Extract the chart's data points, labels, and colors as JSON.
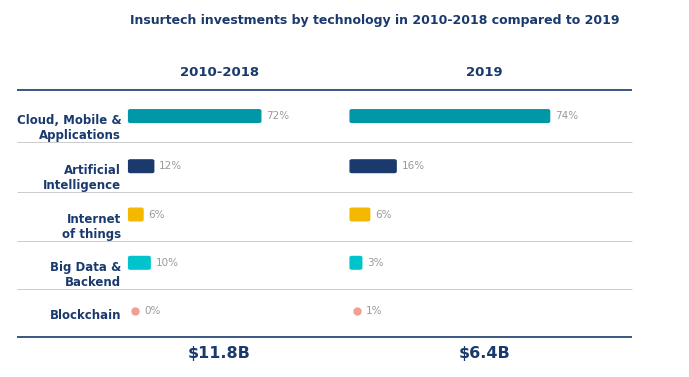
{
  "title": "Insurtech investments by technology in 2010-2018 compared to 2019",
  "col1_header": "2010-2018",
  "col2_header": "2019",
  "col1_total": "$11.8B",
  "col2_total": "$6.4B",
  "categories": [
    "Cloud, Mobile &\nApplications",
    "Artificial\nIntelligence",
    "Internet\nof things",
    "Big Data &\nBackend",
    "Blockchain"
  ],
  "col1_values": [
    72,
    12,
    6,
    10,
    0
  ],
  "col2_values": [
    74,
    16,
    6,
    3,
    1
  ],
  "col1_labels": [
    "72%",
    "12%",
    "6%",
    "10%",
    "0%"
  ],
  "col2_labels": [
    "74%",
    "16%",
    "6%",
    "3%",
    "1%"
  ],
  "bar_colors": [
    "#0097a7",
    "#1a3a6e",
    "#f5b800",
    "#00c4cc",
    "#f0a090"
  ],
  "title_color": "#1a3a6e",
  "header_color": "#1a3a6e",
  "category_color": "#1a3a6e",
  "label_color": "#999999",
  "total_color": "#1a3a6e",
  "bg_color": "#ffffff",
  "separator_color_dark": "#1a3a6e",
  "separator_color_light": "#cccccc",
  "title_fontsize": 9.0,
  "header_fontsize": 9.5,
  "category_fontsize": 8.5,
  "label_fontsize": 7.5,
  "total_fontsize": 11.5
}
